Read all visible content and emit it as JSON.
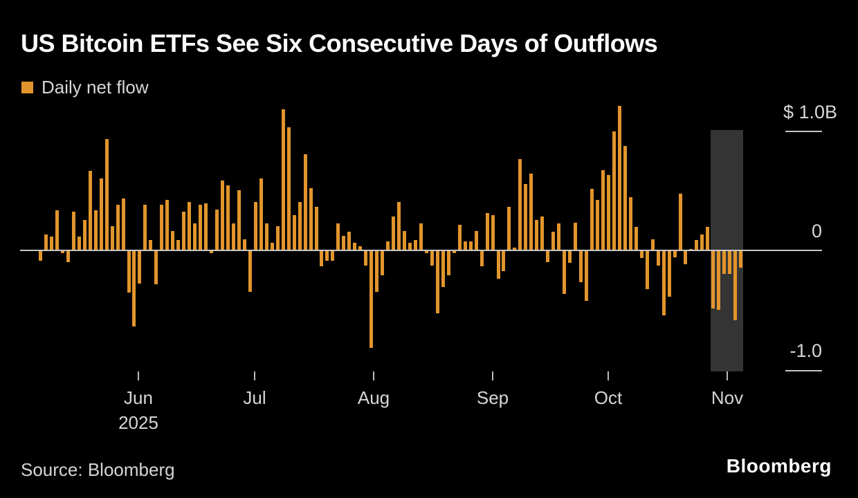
{
  "page": {
    "background": "#000000"
  },
  "header": {
    "title": "US Bitcoin ETFs See Six Consecutive Days of Outflows"
  },
  "legend": {
    "label": "Daily net flow",
    "swatch_color": "#E2952C"
  },
  "chart_data": {
    "type": "bar",
    "title": "US Bitcoin ETFs See Six Consecutive Days of Outflows",
    "series_name": "Daily net flow",
    "unit": "USD billions (daily net flow)",
    "ylim": [
      -1.1,
      1.3
    ],
    "grid": false,
    "legend_position": "top-left",
    "bar_color": "#E2952C",
    "background_color": "#000000",
    "y_axis": {
      "side": "right",
      "ticks": [
        {
          "label": "$ 1.0B",
          "value": 1.0
        },
        {
          "label": "0",
          "value": 0
        },
        {
          "label": "-1.0",
          "value": -1.0
        }
      ]
    },
    "x_axis": {
      "ticks": [
        {
          "label": "Jun",
          "sublabel": "2025"
        },
        {
          "label": "Jul",
          "sublabel": ""
        },
        {
          "label": "Aug",
          "sublabel": ""
        },
        {
          "label": "Sep",
          "sublabel": ""
        },
        {
          "label": "Oct",
          "sublabel": ""
        },
        {
          "label": "Nov",
          "sublabel": ""
        }
      ]
    },
    "highlight_region": {
      "note": "six consecutive days of outflows",
      "bar_start_index": 122,
      "bar_end_index": 127,
      "color": "#343434"
    },
    "values": [
      -0.08,
      0.14,
      0.12,
      0.34,
      -0.02,
      -0.09,
      0.33,
      0.12,
      0.26,
      0.67,
      0.34,
      0.61,
      0.94,
      0.21,
      0.39,
      0.44,
      -0.35,
      -0.63,
      -0.27,
      0.39,
      0.09,
      -0.28,
      0.39,
      0.43,
      0.17,
      0.09,
      0.33,
      0.41,
      0.23,
      0.39,
      0.4,
      -0.02,
      0.35,
      0.59,
      0.55,
      0.23,
      0.51,
      0.1,
      -0.34,
      0.41,
      0.61,
      0.23,
      0.07,
      0.21,
      1.19,
      1.04,
      0.3,
      0.41,
      0.81,
      0.53,
      0.37,
      -0.13,
      -0.08,
      -0.08,
      0.23,
      0.13,
      0.16,
      0.07,
      0.04,
      -0.12,
      -0.81,
      -0.34,
      -0.2,
      0.08,
      0.29,
      0.41,
      0.17,
      0.07,
      0.09,
      0.23,
      -0.02,
      -0.12,
      -0.52,
      -0.3,
      -0.2,
      -0.02,
      0.22,
      0.08,
      0.08,
      0.17,
      -0.13,
      0.32,
      0.3,
      -0.23,
      -0.17,
      0.37,
      0.03,
      0.77,
      0.56,
      0.65,
      0.26,
      0.29,
      -0.09,
      0.16,
      0.23,
      -0.36,
      -0.1,
      0.24,
      -0.26,
      -0.42,
      0.52,
      0.43,
      0.68,
      0.64,
      1.0,
      1.22,
      0.88,
      0.45,
      0.2,
      -0.06,
      -0.32,
      0.1,
      -0.12,
      -0.54,
      -0.38,
      -0.05,
      0.48,
      -0.11,
      0.02,
      0.09,
      0.14,
      0.2,
      -0.48,
      -0.49,
      -0.19,
      -0.19,
      -0.58,
      -0.14
    ]
  },
  "footer": {
    "source": "Source: Bloomberg",
    "brand": "Bloomberg"
  }
}
